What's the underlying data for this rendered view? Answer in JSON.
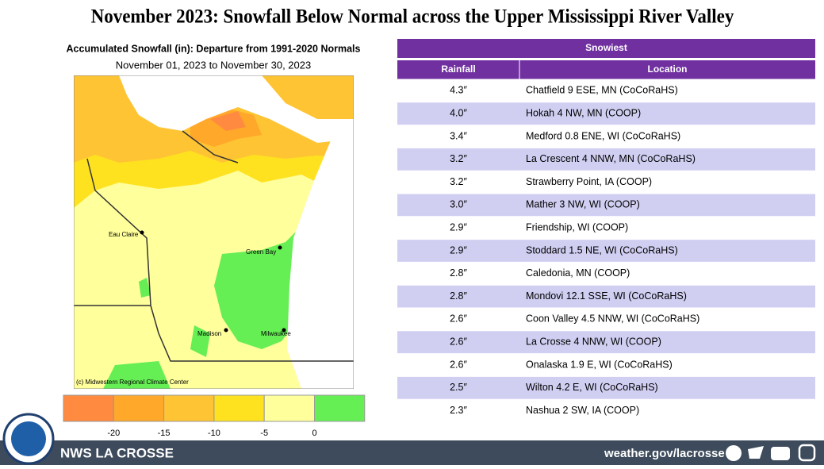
{
  "header": {
    "title": "November 2023:  Snowfall Below Normal across the Upper Mississippi River Valley"
  },
  "map": {
    "title": "Accumulated Snowfall (in): Departure from 1991-2020 Normals",
    "subtitle": "November 01, 2023 to November 30, 2023",
    "credit": "(c) Midwestern Regional Climate Center",
    "cities": [
      "Eau Claire",
      "Green Bay",
      "Madison",
      "Milwaukee"
    ]
  },
  "legend": {
    "colors": [
      "#ff8a40",
      "#ffa82a",
      "#ffc433",
      "#ffe21f",
      "#ffff9c",
      "#66ee55"
    ],
    "labels": [
      "-20",
      "-15",
      "-10",
      "-5",
      "0"
    ]
  },
  "table": {
    "title": "Snowiest",
    "columns": [
      "Rainfall",
      "Location"
    ],
    "rows": [
      [
        "4.3″",
        "Chatfield 9 ESE, MN (CoCoRaHS)"
      ],
      [
        "4.0″",
        "Hokah 4 NW, MN (COOP)"
      ],
      [
        "3.4″",
        "Medford 0.8 ENE, WI (CoCoRaHS)"
      ],
      [
        "3.2″",
        "La Crescent 4 NNW, MN (CoCoRaHS)"
      ],
      [
        "3.2″",
        "Strawberry Point, IA (COOP)"
      ],
      [
        "3.0″",
        "Mather 3 NW, WI (COOP)"
      ],
      [
        "2.9″",
        "Friendship, WI (COOP)"
      ],
      [
        "2.9″",
        "Stoddard 1.5 NE, WI (CoCoRaHS)"
      ],
      [
        "2.8″",
        "Caledonia, MN (COOP)"
      ],
      [
        "2.8″",
        "Mondovi 12.1 SSE, WI (CoCoRaHS)"
      ],
      [
        "2.6″",
        "Coon Valley 4.5 NNW, WI (CoCoRaHS)"
      ],
      [
        "2.6″",
        "La Crosse 4 NNW, WI (COOP)"
      ],
      [
        "2.6″",
        "Onalaska 1.9 E, WI (CoCoRaHS)"
      ],
      [
        "2.5″",
        "Wilton 4.2 E, WI (CoCoRaHS)"
      ],
      [
        "2.3″",
        "Nashua 2 SW, IA (COOP)"
      ]
    ]
  },
  "footer": {
    "office": "NWS LA CROSSE",
    "url": "weather.gov/lacrosse"
  }
}
